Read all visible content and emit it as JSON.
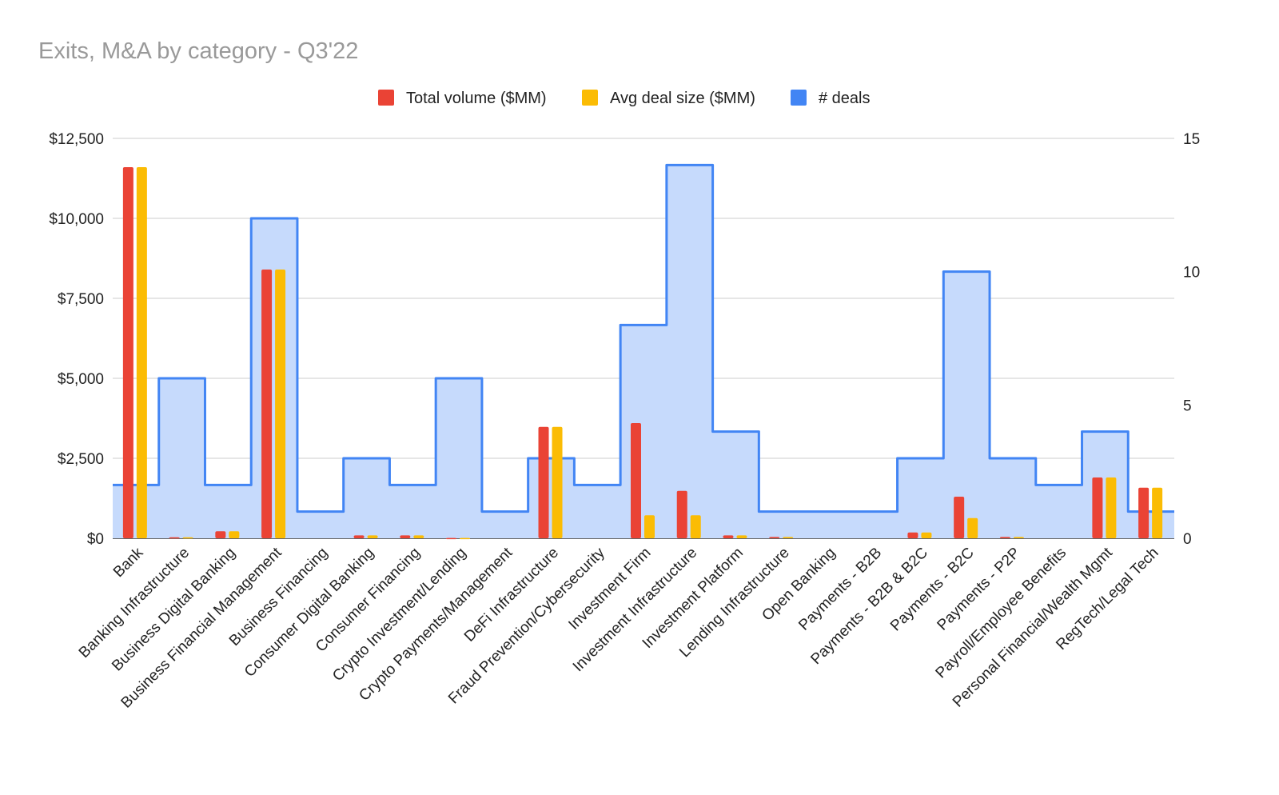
{
  "chart_data": {
    "type": "bar",
    "title": "Exits, M&A by category - Q3'22",
    "categories": [
      "Bank",
      "Banking Infrastructure",
      "Business Digital Banking",
      "Business Financial Management",
      "Business Financing",
      "Consumer Digital Banking",
      "Consumer Financing",
      "Crypto Investment/Lending",
      "Crypto Payments/Management",
      "DeFi Infrastructure",
      "Fraud Prevention/Cybersecurity",
      "Investment Firm",
      "Investment Infrastructure",
      "Investment Platform",
      "Lending Infrastructure",
      "Open Banking",
      "Payments - B2B",
      "Payments - B2B & B2C",
      "Payments - B2C",
      "Payments - P2P",
      "Payroll/Employee Benefits",
      "Personal Financial/Wealth Mgmt",
      "RegTech/Legal Tech"
    ],
    "series": [
      {
        "name": "Total volume ($MM)",
        "type": "bar",
        "axis": "left",
        "color": "#ea4335",
        "values": [
          11600,
          30,
          220,
          8400,
          0,
          90,
          90,
          10,
          0,
          3480,
          0,
          3600,
          1480,
          90,
          40,
          0,
          0,
          180,
          1300,
          40,
          0,
          1900,
          1580
        ]
      },
      {
        "name": "Avg deal size ($MM)",
        "type": "bar",
        "axis": "left",
        "color": "#fbbc04",
        "values": [
          11600,
          30,
          220,
          8400,
          0,
          90,
          90,
          10,
          0,
          3480,
          0,
          720,
          720,
          90,
          40,
          0,
          0,
          180,
          630,
          40,
          0,
          1900,
          1580
        ]
      },
      {
        "name": "# deals",
        "type": "stepped-area",
        "axis": "right",
        "color": "#4285f4",
        "values": [
          2,
          6,
          2,
          12,
          1,
          3,
          2,
          6,
          1,
          3,
          2,
          8,
          14,
          4,
          1,
          1,
          1,
          3,
          10,
          3,
          2,
          4,
          1
        ]
      }
    ],
    "y_left": {
      "range": [
        0,
        12500
      ],
      "ticks": [
        "$0",
        "$2,500",
        "$5,000",
        "$7,500",
        "$10,000",
        "$12,500"
      ]
    },
    "y_right": {
      "range": [
        0,
        15
      ],
      "ticks": [
        "0",
        "5",
        "10",
        "15"
      ]
    },
    "legend_position": "top",
    "grid": true
  }
}
